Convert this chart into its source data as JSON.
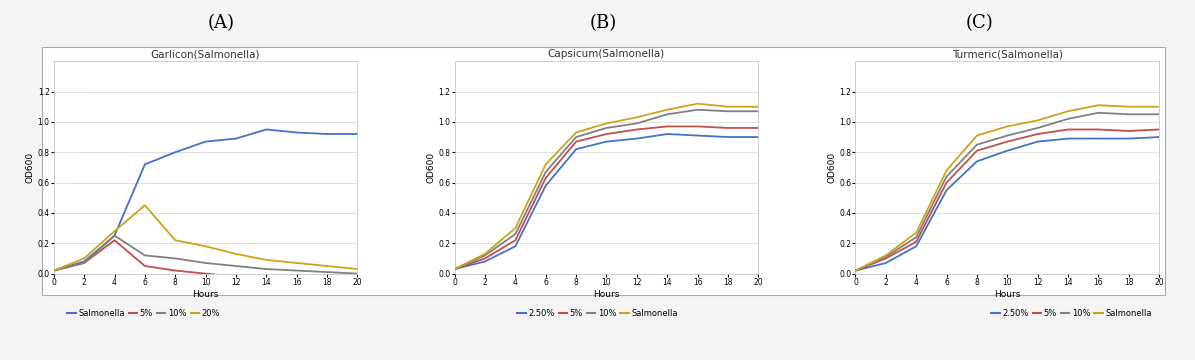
{
  "panel_labels": [
    "(A)",
    "(B)",
    "(C)"
  ],
  "titles": [
    "Garlicon(Salmonella)",
    "Capsicum(Salmonella)",
    "Turmeric(Salmonella)"
  ],
  "xlabel": "Hours",
  "ylabel": "OD600",
  "hours": [
    0,
    2,
    4,
    6,
    8,
    10,
    12,
    14,
    16,
    18,
    20
  ],
  "A_salmonella": [
    0.02,
    0.08,
    0.25,
    0.72,
    0.8,
    0.87,
    0.89,
    0.95,
    0.93,
    0.92,
    0.92
  ],
  "A_5pct": [
    0.02,
    0.07,
    0.22,
    0.05,
    0.02,
    0.0,
    -0.02,
    -0.04,
    -0.06,
    -0.08,
    -0.1
  ],
  "A_10pct": [
    0.02,
    0.07,
    0.25,
    0.12,
    0.1,
    0.07,
    0.05,
    0.03,
    0.02,
    0.01,
    0.0
  ],
  "A_20pct": [
    0.02,
    0.1,
    0.28,
    0.45,
    0.22,
    0.18,
    0.13,
    0.09,
    0.07,
    0.05,
    0.03
  ],
  "B_2_5pct": [
    0.03,
    0.08,
    0.18,
    0.58,
    0.82,
    0.87,
    0.89,
    0.92,
    0.91,
    0.9,
    0.9
  ],
  "B_5pct": [
    0.03,
    0.1,
    0.22,
    0.63,
    0.87,
    0.92,
    0.95,
    0.97,
    0.97,
    0.96,
    0.96
  ],
  "B_10pct": [
    0.03,
    0.12,
    0.26,
    0.67,
    0.9,
    0.96,
    0.99,
    1.05,
    1.08,
    1.07,
    1.07
  ],
  "B_salmonella": [
    0.03,
    0.13,
    0.3,
    0.72,
    0.93,
    0.99,
    1.03,
    1.08,
    1.12,
    1.1,
    1.1
  ],
  "C_2_5pct": [
    0.02,
    0.07,
    0.18,
    0.55,
    0.74,
    0.81,
    0.87,
    0.89,
    0.89,
    0.89,
    0.9
  ],
  "C_5pct": [
    0.02,
    0.1,
    0.21,
    0.6,
    0.81,
    0.87,
    0.92,
    0.95,
    0.95,
    0.94,
    0.95
  ],
  "C_10pct": [
    0.02,
    0.11,
    0.24,
    0.64,
    0.85,
    0.91,
    0.96,
    1.02,
    1.06,
    1.05,
    1.05
  ],
  "C_salmonella": [
    0.02,
    0.12,
    0.27,
    0.68,
    0.91,
    0.97,
    1.01,
    1.07,
    1.11,
    1.1,
    1.1
  ],
  "color_blue": "#4472C4",
  "color_orange": "#C0504D",
  "color_gray": "#808080",
  "color_yellow": "#CDA417",
  "legend_A": [
    "Salmonella",
    "5%",
    "10%",
    "20%"
  ],
  "legend_BC": [
    "2.50%",
    "5%",
    "10%",
    "Salmonella"
  ],
  "ylim": [
    0.0,
    1.4
  ],
  "yticks": [
    0.0,
    0.2,
    0.4,
    0.6,
    0.8,
    1.0,
    1.2
  ],
  "xticks": [
    0,
    2,
    4,
    6,
    8,
    10,
    12,
    14,
    16,
    18,
    20
  ],
  "bg_color": "#FFFFFF",
  "grid_color": "#DCDCDC",
  "title_fontsize": 7.5,
  "axis_fontsize": 6.5,
  "tick_fontsize": 5.5,
  "legend_fontsize": 6,
  "panel_label_fontsize": 13
}
